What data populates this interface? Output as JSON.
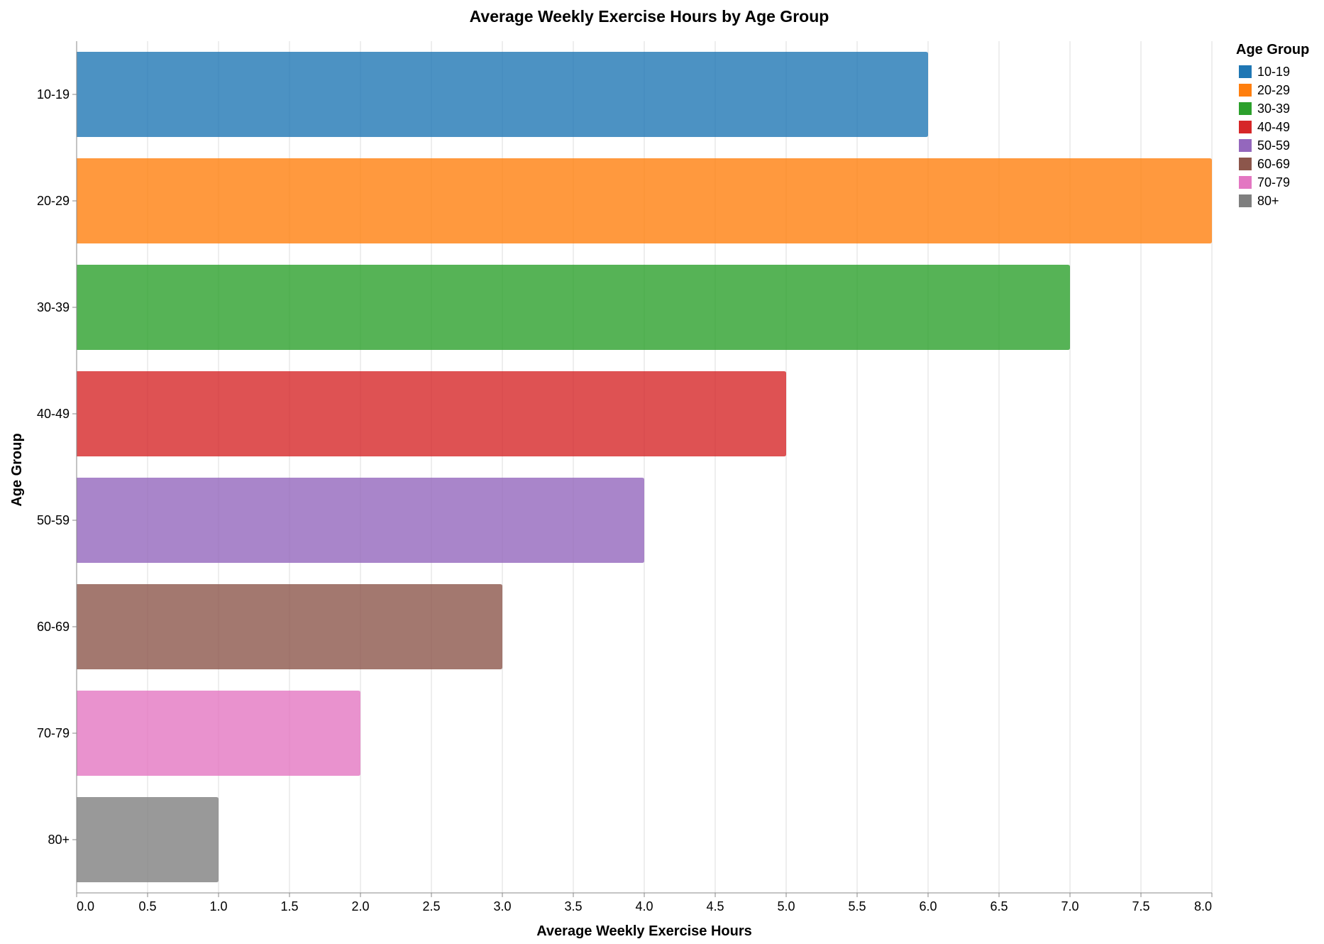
{
  "chart_data": {
    "type": "bar",
    "orientation": "horizontal",
    "title": "Average Weekly Exercise Hours by Age Group",
    "xlabel": "Average Weekly Exercise Hours",
    "ylabel": "Age Group",
    "categories": [
      "10-19",
      "20-29",
      "30-39",
      "40-49",
      "50-59",
      "60-69",
      "70-79",
      "80+"
    ],
    "values": [
      6,
      8,
      7,
      5,
      4,
      3,
      2,
      1
    ],
    "colors": [
      "#1f77b4",
      "#ff7f0e",
      "#2ca02c",
      "#d62728",
      "#9467bd",
      "#8c564b",
      "#e377c2",
      "#7f7f7f"
    ],
    "xlim": [
      0,
      8
    ],
    "xticks": [
      "0.0",
      "0.5",
      "1.0",
      "1.5",
      "2.0",
      "2.5",
      "3.0",
      "3.5",
      "4.0",
      "4.5",
      "5.0",
      "5.5",
      "6.0",
      "6.5",
      "7.0",
      "7.5",
      "8.0"
    ],
    "grid": true,
    "legend": {
      "title": "Age Group",
      "placement": "right",
      "entries": [
        "10-19",
        "20-29",
        "30-39",
        "40-49",
        "50-59",
        "60-69",
        "70-79",
        "80+"
      ]
    }
  }
}
